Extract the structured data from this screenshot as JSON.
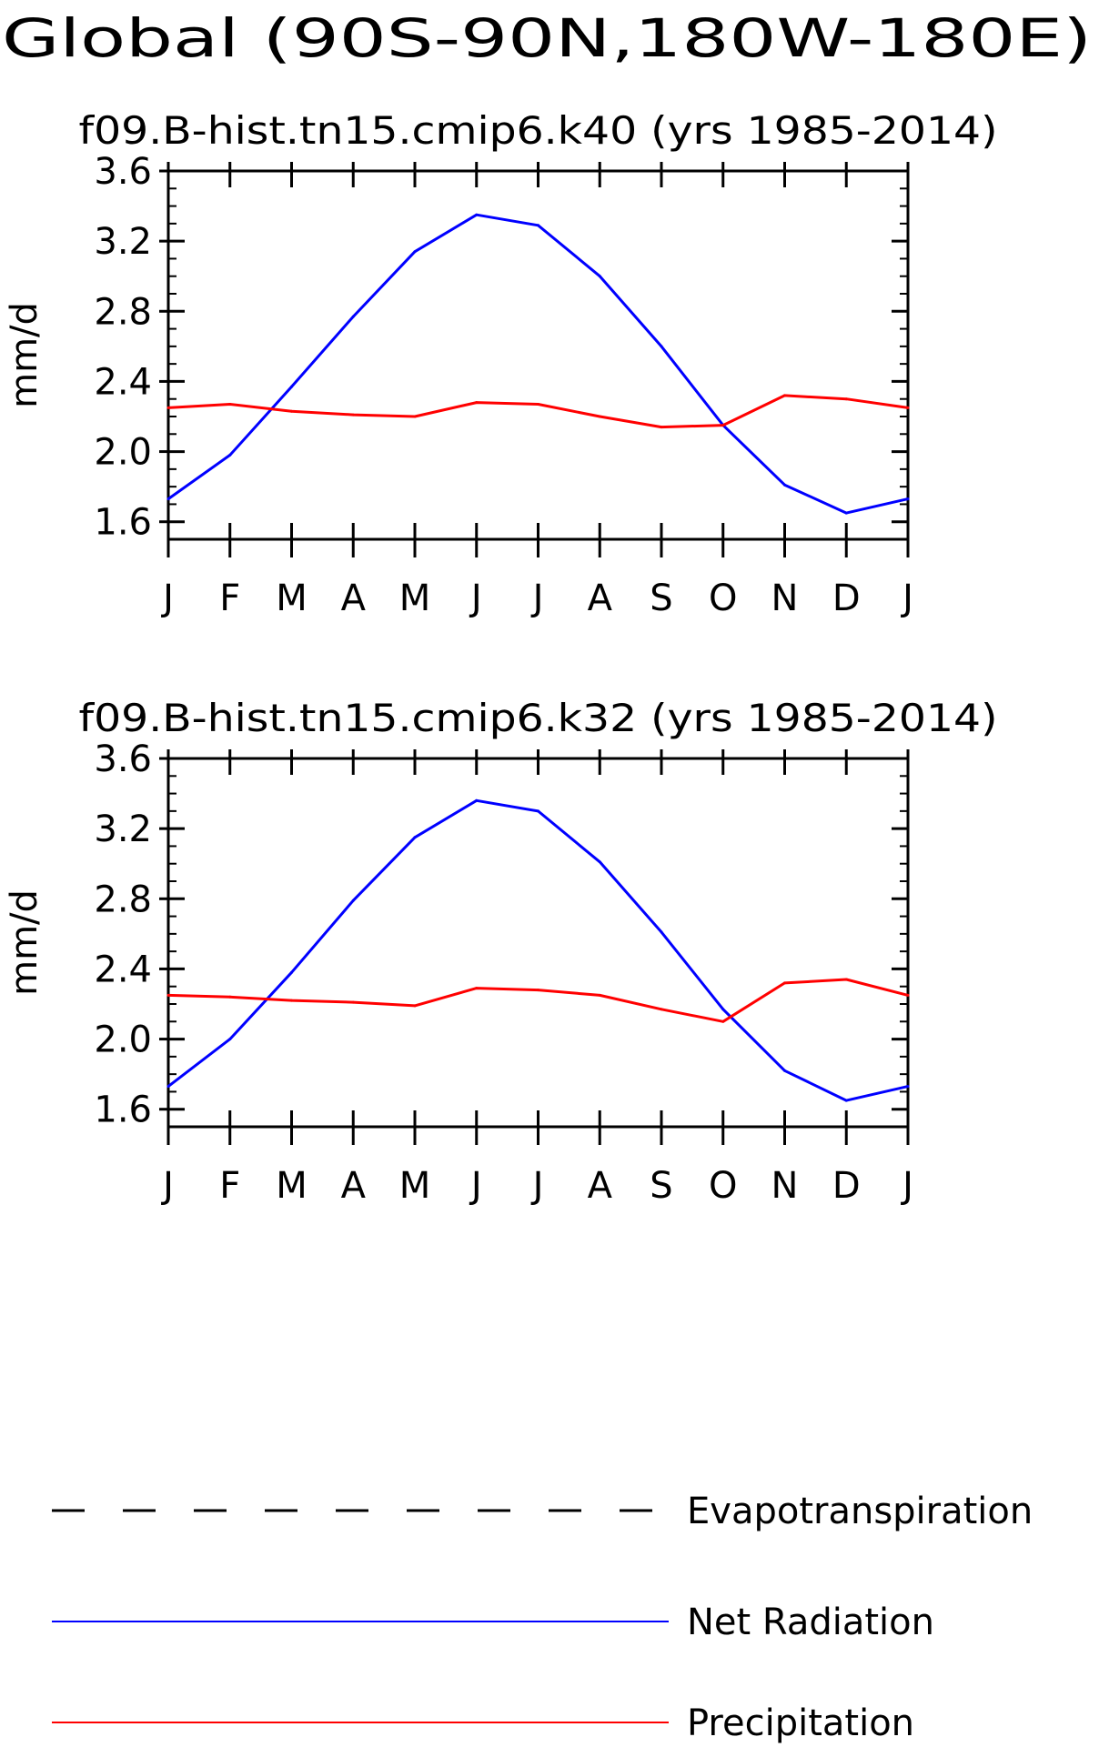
{
  "figure": {
    "title": "Global (90S-90N,180W-180E)"
  },
  "legend": {
    "placement": "bottom",
    "entries": [
      {
        "label": "Evapotranspiration",
        "color": "#000000",
        "style": "dashed"
      },
      {
        "label": "Net Radiation",
        "color": "#0000ff",
        "style": "solid"
      },
      {
        "label": "Precipitation",
        "color": "#ff0000",
        "style": "solid"
      }
    ]
  },
  "chart_data": [
    {
      "type": "line",
      "title": "f09.B-hist.tn15.cmip6.k40 (yrs 1985-2014)",
      "ylabel": "mm/d",
      "xlabel": "",
      "ylim": [
        1.5,
        3.6
      ],
      "yticks": [
        "1.6",
        "2.0",
        "2.4",
        "2.8",
        "3.2",
        "3.6"
      ],
      "categories": [
        "J",
        "F",
        "M",
        "A",
        "M",
        "J",
        "J",
        "A",
        "S",
        "O",
        "N",
        "D",
        "J"
      ],
      "series": [
        {
          "name": "Net Radiation",
          "color": "#0000ff",
          "values": [
            1.73,
            1.98,
            2.37,
            2.77,
            3.14,
            3.35,
            3.29,
            3.0,
            2.6,
            2.15,
            1.81,
            1.65,
            1.73
          ]
        },
        {
          "name": "Precipitation",
          "color": "#ff0000",
          "values": [
            2.25,
            2.27,
            2.23,
            2.21,
            2.2,
            2.28,
            2.27,
            2.2,
            2.14,
            2.15,
            2.32,
            2.3,
            2.25
          ]
        }
      ]
    },
    {
      "type": "line",
      "title": "f09.B-hist.tn15.cmip6.k32 (yrs 1985-2014)",
      "ylabel": "mm/d",
      "xlabel": "",
      "ylim": [
        1.5,
        3.6
      ],
      "yticks": [
        "1.6",
        "2.0",
        "2.4",
        "2.8",
        "3.2",
        "3.6"
      ],
      "categories": [
        "J",
        "F",
        "M",
        "A",
        "M",
        "J",
        "J",
        "A",
        "S",
        "O",
        "N",
        "D",
        "J"
      ],
      "series": [
        {
          "name": "Net Radiation",
          "color": "#0000ff",
          "values": [
            1.73,
            2.0,
            2.38,
            2.79,
            3.15,
            3.36,
            3.3,
            3.01,
            2.61,
            2.17,
            1.82,
            1.65,
            1.73
          ]
        },
        {
          "name": "Precipitation",
          "color": "#ff0000",
          "values": [
            2.25,
            2.24,
            2.22,
            2.21,
            2.19,
            2.29,
            2.28,
            2.25,
            2.17,
            2.1,
            2.32,
            2.34,
            2.25
          ]
        }
      ]
    }
  ]
}
